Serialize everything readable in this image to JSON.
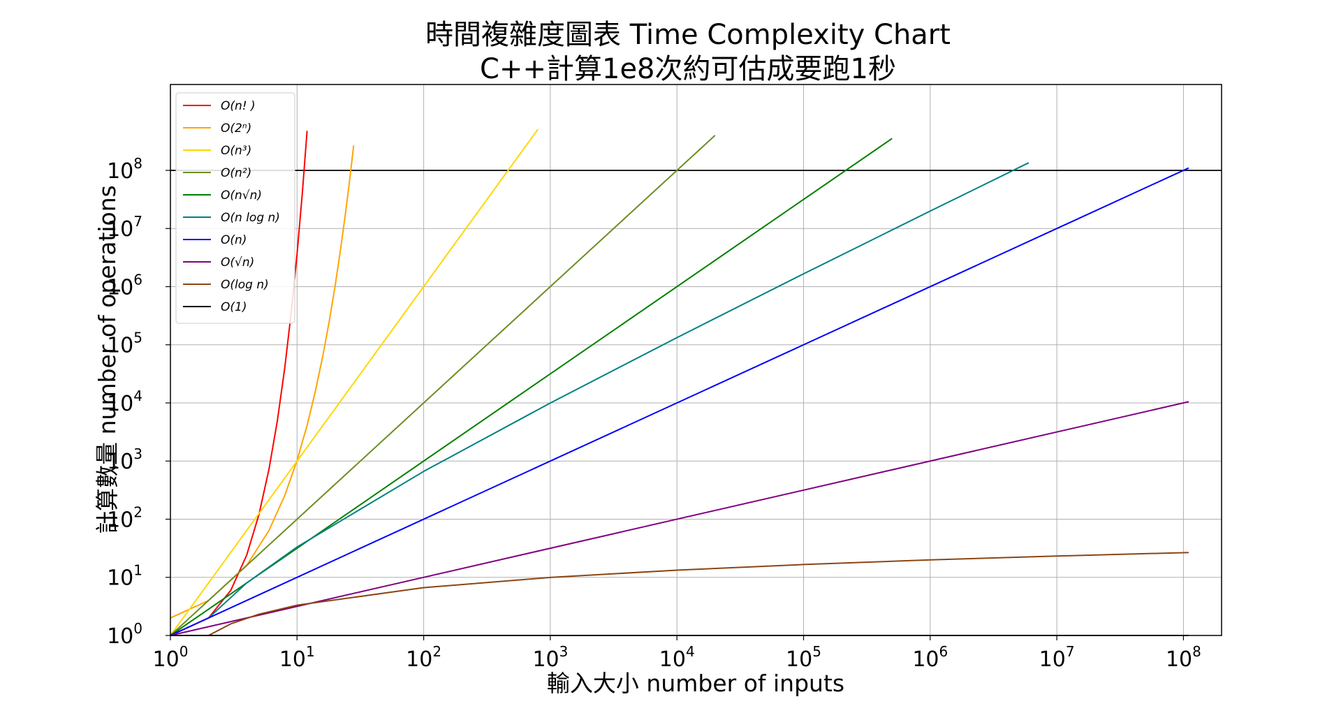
{
  "chart_data": {
    "type": "line",
    "title": "時間複雜度圖表 Time Complexity Chart",
    "subtitle": "C++計算1e8次約可估成要跑1秒",
    "xlabel": "輸入大小 number of inputs",
    "ylabel": "計算數量 number of operations",
    "xscale": "log",
    "yscale": "log",
    "xlim": [
      1,
      200000000
    ],
    "ylim": [
      1,
      3000000000
    ],
    "grid": true,
    "legend_position": "top-left",
    "x_ticks": [
      {
        "base": "10",
        "exp": "0"
      },
      {
        "base": "10",
        "exp": "1"
      },
      {
        "base": "10",
        "exp": "2"
      },
      {
        "base": "10",
        "exp": "3"
      },
      {
        "base": "10",
        "exp": "4"
      },
      {
        "base": "10",
        "exp": "5"
      },
      {
        "base": "10",
        "exp": "6"
      },
      {
        "base": "10",
        "exp": "7"
      },
      {
        "base": "10",
        "exp": "8"
      }
    ],
    "y_ticks": [
      {
        "base": "10",
        "exp": "0"
      },
      {
        "base": "10",
        "exp": "1"
      },
      {
        "base": "10",
        "exp": "2"
      },
      {
        "base": "10",
        "exp": "3"
      },
      {
        "base": "10",
        "exp": "4"
      },
      {
        "base": "10",
        "exp": "5"
      },
      {
        "base": "10",
        "exp": "6"
      },
      {
        "base": "10",
        "exp": "7"
      },
      {
        "base": "10",
        "exp": "8"
      }
    ],
    "series": [
      {
        "name": "O(n! )",
        "color": "#ff0000",
        "x": [
          1,
          2,
          3,
          4,
          5,
          6,
          7,
          8,
          9,
          10,
          11,
          12
        ],
        "y": [
          1,
          2,
          6,
          24,
          120,
          720,
          5040,
          40320,
          362880,
          3628800,
          39916800,
          479001600
        ]
      },
      {
        "name": "O(2ⁿ)",
        "color": "#ffa500",
        "x": [
          1,
          2,
          4,
          6,
          8,
          10,
          12,
          14,
          16,
          18,
          20,
          22,
          24,
          26,
          28
        ],
        "y": [
          2,
          4,
          16,
          64,
          256,
          1024,
          4096,
          16384,
          65536,
          262144,
          1048576,
          4194304,
          16777216,
          67108864,
          268435456
        ]
      },
      {
        "name": "O(n³)",
        "color": "#ffd700",
        "x": [
          1,
          800
        ],
        "y": [
          1,
          512000000
        ]
      },
      {
        "name": "O(n²)",
        "color": "#6b8e23",
        "x": [
          1,
          20000
        ],
        "y": [
          1,
          400000000
        ]
      },
      {
        "name": "O(n√n)",
        "color": "#008000",
        "x": [
          1,
          500000
        ],
        "y": [
          1,
          353553390
        ]
      },
      {
        "name": "O(n log n)",
        "color": "#008080",
        "x": [
          2,
          4,
          10,
          100,
          1000,
          10000,
          100000,
          1000000,
          6000000
        ],
        "y": [
          2,
          8,
          33.2,
          664,
          9966,
          132877,
          1660964,
          19931569,
          135187500
        ]
      },
      {
        "name": "O(n)",
        "color": "#0000ff",
        "x": [
          1,
          110000000
        ],
        "y": [
          1,
          110000000
        ]
      },
      {
        "name": "O(√n)",
        "color": "#800080",
        "x": [
          1,
          110000000
        ],
        "y": [
          1,
          10488
        ]
      },
      {
        "name": "O(log n)",
        "color": "#8b4513",
        "x": [
          2,
          3,
          5,
          10,
          100,
          1000,
          10000,
          100000,
          1000000,
          10000000,
          110000000
        ],
        "y": [
          1,
          1.585,
          2.32,
          3.32,
          6.64,
          9.97,
          13.29,
          16.61,
          19.93,
          23.25,
          26.71
        ]
      },
      {
        "name": "O(1)",
        "color": "#000000",
        "x": [
          1,
          110000000
        ],
        "y": [
          1,
          1
        ]
      }
    ],
    "reference_line": {
      "y": 100000000,
      "color": "#000000"
    }
  }
}
